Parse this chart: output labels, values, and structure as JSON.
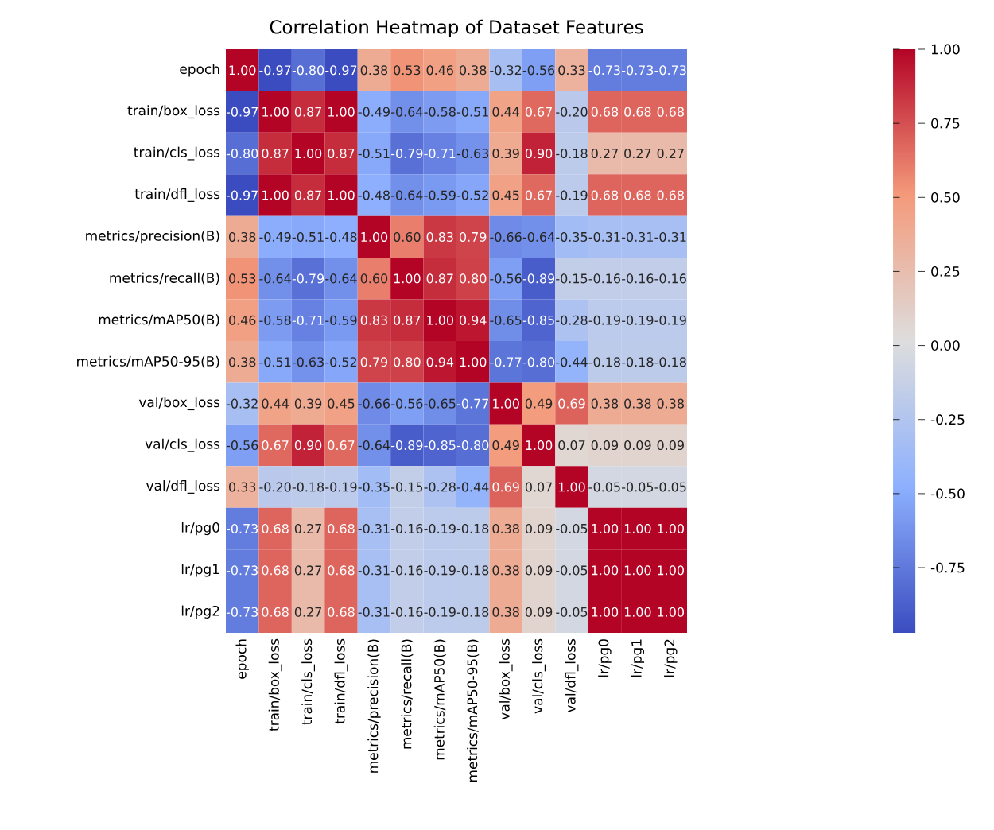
{
  "chart_data": {
    "type": "heatmap",
    "title": "Correlation Heatmap of Dataset Features",
    "categories": [
      "epoch",
      "train/box_loss",
      "train/cls_loss",
      "train/dfl_loss",
      "metrics/precision(B)",
      "metrics/recall(B)",
      "metrics/mAP50(B)",
      "metrics/mAP50-95(B)",
      "val/box_loss",
      "val/cls_loss",
      "val/dfl_loss",
      "lr/pg0",
      "lr/pg1",
      "lr/pg2"
    ],
    "y_categories": [
      "epoch",
      "train/box_loss",
      "train/cls_loss",
      "train/dfl_loss",
      "metrics/precision(B)",
      "metrics/recall(B)",
      "metrics/mAP50(B)",
      "metrics/mAP50-95(B)",
      "val/box_loss",
      "val/cls_loss",
      "val/dfl_loss",
      "lr/pg0",
      "lr/pg1",
      "lr/pg2"
    ],
    "cells": [
      [
        1.0,
        -0.97,
        -0.8,
        -0.97,
        0.38,
        0.53,
        0.46,
        0.38,
        -0.32,
        -0.56,
        0.33,
        -0.73,
        -0.73,
        -0.73
      ],
      [
        -0.97,
        1.0,
        0.87,
        1.0,
        -0.49,
        -0.64,
        -0.58,
        -0.51,
        0.44,
        0.67,
        -0.2,
        0.68,
        0.68,
        0.68
      ],
      [
        -0.8,
        0.87,
        1.0,
        0.87,
        -0.51,
        -0.79,
        -0.71,
        -0.63,
        0.39,
        0.9,
        -0.18,
        0.27,
        0.27,
        0.27
      ],
      [
        -0.97,
        1.0,
        0.87,
        1.0,
        -0.48,
        -0.64,
        -0.59,
        -0.52,
        0.45,
        0.67,
        -0.19,
        0.68,
        0.68,
        0.68
      ],
      [
        0.38,
        -0.49,
        -0.51,
        -0.48,
        1.0,
        0.6,
        0.83,
        0.79,
        -0.66,
        -0.64,
        -0.35,
        -0.31,
        -0.31,
        -0.31
      ],
      [
        0.53,
        -0.64,
        -0.79,
        -0.64,
        0.6,
        1.0,
        0.87,
        0.8,
        -0.56,
        -0.89,
        -0.15,
        -0.16,
        -0.16,
        -0.16
      ],
      [
        0.46,
        -0.58,
        -0.71,
        -0.59,
        0.83,
        0.87,
        1.0,
        0.94,
        -0.65,
        -0.85,
        -0.28,
        -0.19,
        -0.19,
        -0.19
      ],
      [
        0.38,
        -0.51,
        -0.63,
        -0.52,
        0.79,
        0.8,
        0.94,
        1.0,
        -0.77,
        -0.8,
        -0.44,
        -0.18,
        -0.18,
        -0.18
      ],
      [
        -0.32,
        0.44,
        0.39,
        0.45,
        -0.66,
        -0.56,
        -0.65,
        -0.77,
        1.0,
        0.49,
        0.69,
        0.38,
        0.38,
        0.38
      ],
      [
        -0.56,
        0.67,
        0.9,
        0.67,
        -0.64,
        -0.89,
        -0.85,
        -0.8,
        0.49,
        1.0,
        0.07,
        0.09,
        0.09,
        0.09
      ],
      [
        0.33,
        -0.2,
        -0.18,
        -0.19,
        -0.35,
        -0.15,
        -0.28,
        -0.44,
        0.69,
        0.07,
        1.0,
        -0.05,
        -0.05,
        -0.05
      ],
      [
        -0.73,
        0.68,
        0.27,
        0.68,
        -0.31,
        -0.16,
        -0.19,
        -0.18,
        0.38,
        0.09,
        -0.05,
        1.0,
        1.0,
        1.0
      ],
      [
        -0.73,
        0.68,
        0.27,
        0.68,
        -0.31,
        -0.16,
        -0.19,
        -0.18,
        0.38,
        0.09,
        -0.05,
        1.0,
        1.0,
        1.0
      ],
      [
        -0.73,
        0.68,
        0.27,
        0.68,
        -0.31,
        -0.16,
        -0.19,
        -0.18,
        0.38,
        0.09,
        -0.05,
        1.0,
        1.0,
        1.0
      ]
    ],
    "cell_labels": [
      [
        "1.00",
        "-0.97",
        "-0.80",
        "-0.97",
        "0.38",
        "0.53",
        "0.46",
        "0.38",
        "-0.32",
        "-0.56",
        "0.33",
        "-0.73",
        "-0.73",
        "-0.73"
      ],
      [
        "-0.97",
        "1.00",
        "0.87",
        "1.00",
        "-0.49",
        "-0.64",
        "-0.58",
        "-0.51",
        "0.44",
        "0.67",
        "-0.20",
        "0.68",
        "0.68",
        "0.68"
      ],
      [
        "-0.80",
        "0.87",
        "1.00",
        "0.87",
        "-0.51",
        "-0.79",
        "-0.71",
        "-0.63",
        "0.39",
        "0.90",
        "-0.18",
        "0.27",
        "0.27",
        "0.27"
      ],
      [
        "-0.97",
        "1.00",
        "0.87",
        "1.00",
        "-0.48",
        "-0.64",
        "-0.59",
        "-0.52",
        "0.45",
        "0.67",
        "-0.19",
        "0.68",
        "0.68",
        "0.68"
      ],
      [
        "0.38",
        "-0.49",
        "-0.51",
        "-0.48",
        "1.00",
        "0.60",
        "0.83",
        "0.79",
        "-0.66",
        "-0.64",
        "-0.35",
        "-0.31",
        "-0.31",
        "-0.31"
      ],
      [
        "0.53",
        "-0.64",
        "-0.79",
        "-0.64",
        "0.60",
        "1.00",
        "0.87",
        "0.80",
        "-0.56",
        "-0.89",
        "-0.15",
        "-0.16",
        "-0.16",
        "-0.16"
      ],
      [
        "0.46",
        "-0.58",
        "-0.71",
        "-0.59",
        "0.83",
        "0.87",
        "1.00",
        "0.94",
        "-0.65",
        "-0.85",
        "-0.28",
        "-0.19",
        "-0.19",
        "-0.19"
      ],
      [
        "0.38",
        "-0.51",
        "-0.63",
        "-0.52",
        "0.79",
        "0.80",
        "0.94",
        "1.00",
        "-0.77",
        "-0.80",
        "-0.44",
        "-0.18",
        "-0.18",
        "-0.18"
      ],
      [
        "-0.32",
        "0.44",
        "0.39",
        "0.45",
        "-0.66",
        "-0.56",
        "-0.65",
        "-0.77",
        "1.00",
        "0.49",
        "0.69",
        "0.38",
        "0.38",
        "0.38"
      ],
      [
        "-0.56",
        "0.67",
        "0.90",
        "0.67",
        "-0.64",
        "-0.89",
        "-0.85",
        "-0.80",
        "0.49",
        "1.00",
        "0.07",
        "0.09",
        "0.09",
        "0.09"
      ],
      [
        "0.33",
        "-0.20",
        "-0.18",
        "-0.19",
        "-0.35",
        "-0.15",
        "-0.28",
        "-0.44",
        "0.69",
        "0.07",
        "1.00",
        "-0.05",
        "-0.05",
        "-0.05"
      ],
      [
        "-0.73",
        "0.68",
        "0.27",
        "0.68",
        "-0.31",
        "-0.16",
        "-0.19",
        "-0.18",
        "0.38",
        "0.09",
        "-0.05",
        "1.00",
        "1.00",
        "1.00"
      ],
      [
        "-0.73",
        "0.68",
        "0.27",
        "0.68",
        "-0.31",
        "-0.16",
        "-0.19",
        "-0.18",
        "0.38",
        "0.09",
        "-0.05",
        "1.00",
        "1.00",
        "1.00"
      ],
      [
        "-0.73",
        "0.68",
        "0.27",
        "0.68",
        "-0.31",
        "-0.16",
        "-0.19",
        "-0.18",
        "0.38",
        "0.09",
        "-0.05",
        "1.00",
        "1.00",
        "1.00"
      ]
    ],
    "clim": [
      -0.97,
      1.0
    ],
    "cticks": [
      {
        "value": 1.0,
        "label": "1.00"
      },
      {
        "value": 0.75,
        "label": "0.75"
      },
      {
        "value": 0.5,
        "label": "0.50"
      },
      {
        "value": 0.25,
        "label": "0.25"
      },
      {
        "value": 0.0,
        "label": "0.00"
      },
      {
        "value": -0.25,
        "label": "-0.25"
      },
      {
        "value": -0.5,
        "label": "-0.50"
      },
      {
        "value": -0.75,
        "label": "-0.75"
      }
    ]
  }
}
